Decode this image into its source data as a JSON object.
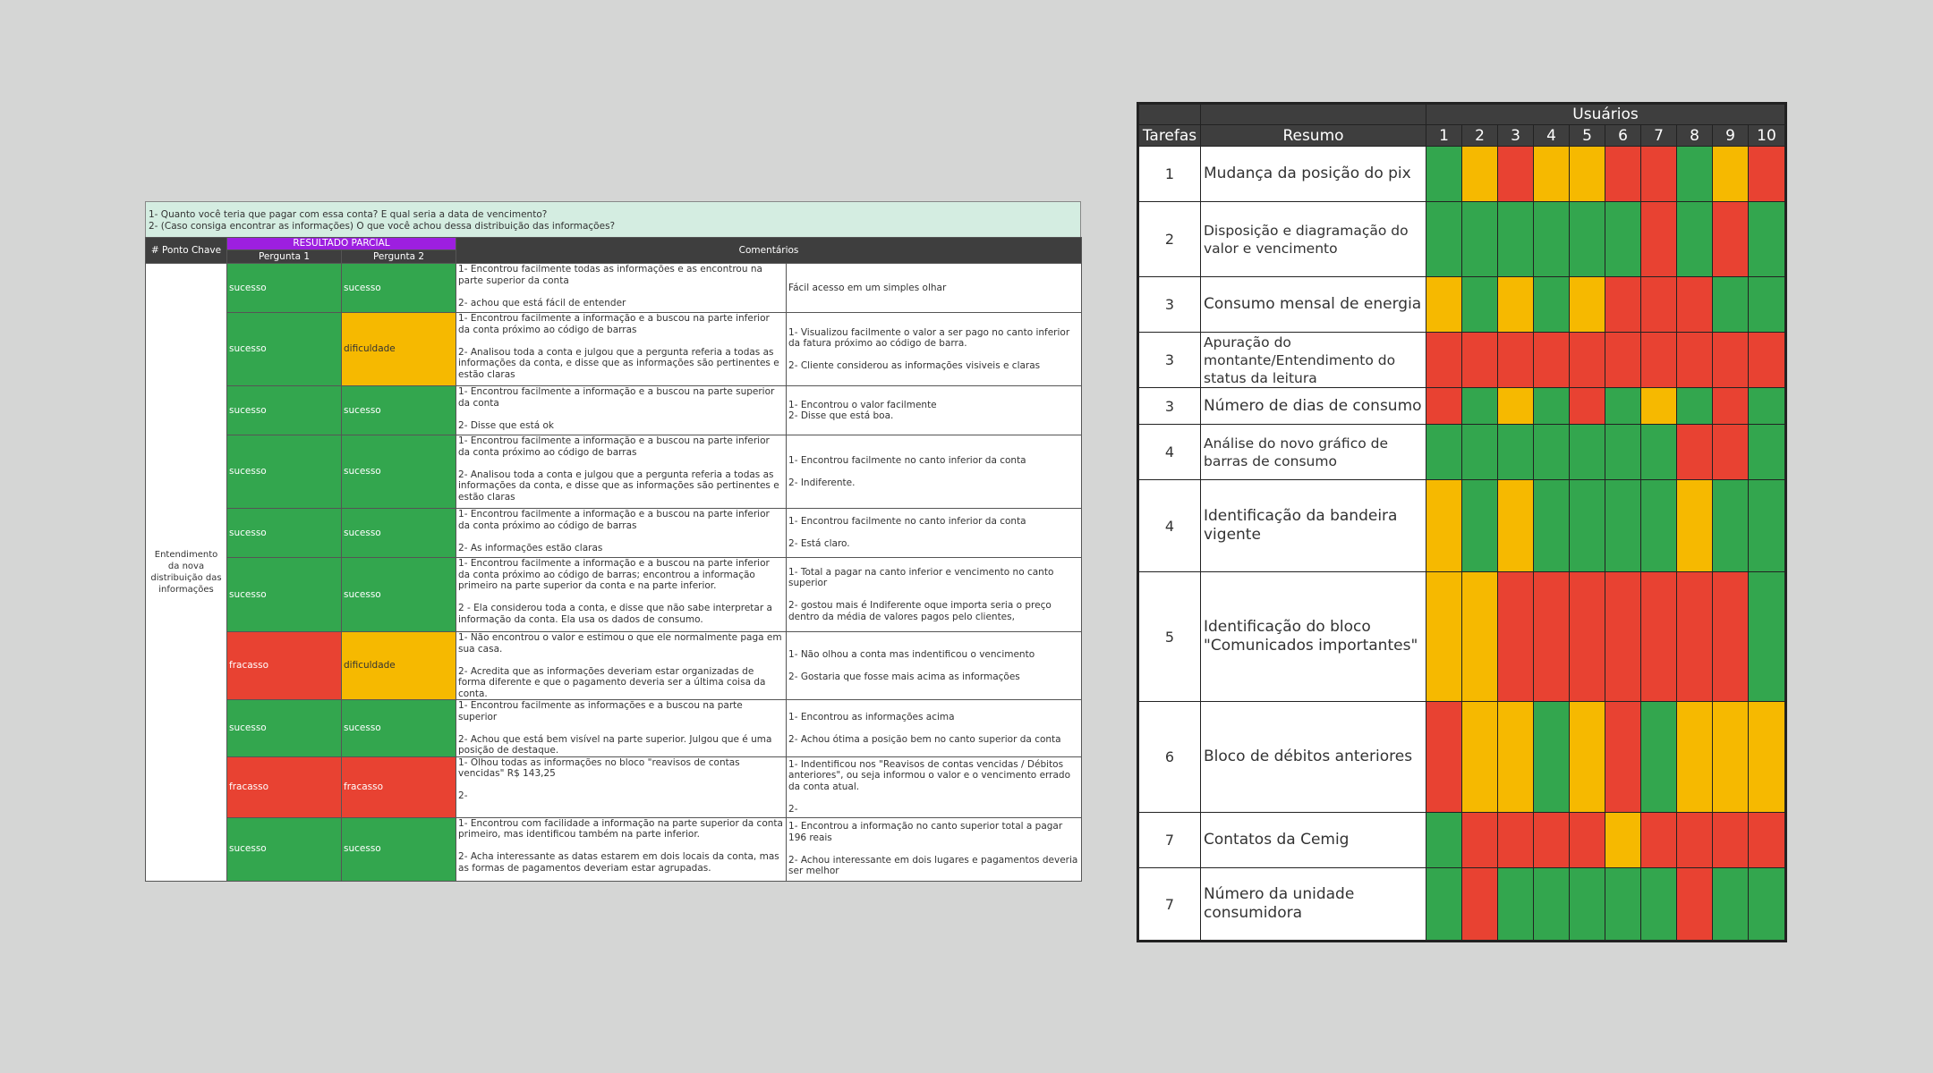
{
  "left": {
    "questions": [
      "1-  Quanto você teria que pagar com essa conta? E qual seria a data de vencimento?",
      "2-  (Caso consiga encontrar as informações) O que você achou dessa distribuição das informações?"
    ],
    "headers": {
      "ponto_chave": "# Ponto Chave",
      "resultado_parcial": "RESULTADO PARCIAL",
      "pergunta1": "Pergunta 1",
      "pergunta2": "Pergunta 2",
      "comentarios": "Comentários"
    },
    "ponto_chave_value": "Entendimento da nova distribuição das informações",
    "rows": [
      {
        "p1": "sucesso",
        "p2": "sucesso",
        "c1": "1- Encontrou facilmente todas as informações e as encontrou na parte superior da conta\n\n2- achou que está fácil de entender",
        "c2": "Fácil acesso em um simples olhar"
      },
      {
        "p1": "sucesso",
        "p2": "dificuldade",
        "c1": "1- Encontrou facilmente a informação e a buscou na parte inferior da conta próximo ao código de barras\n\n2- Analisou toda a conta e julgou que a pergunta referia a todas as informações da conta, e disse que as informações são pertinentes e estão claras",
        "c2": "1- Visualizou facilmente o valor a ser pago no canto inferior da fatura próximo ao código de barra.\n\n2- Cliente considerou as informações visiveis e claras"
      },
      {
        "p1": "sucesso",
        "p2": "sucesso",
        "c1": "1- Encontrou facilmente a informação e a buscou na parte superior da conta\n\n2- Disse que está ok",
        "c2": "1- Encontrou o valor facilmente\n2- Disse que está boa."
      },
      {
        "p1": "sucesso",
        "p2": "sucesso",
        "c1": "1- Encontrou facilmente a informação e a buscou na parte inferior da conta próximo ao código de barras\n\n2- Analisou toda a conta e julgou que a pergunta referia a todas as informações da conta, e disse que as informações são pertinentes e estão claras",
        "c2": "1- Encontrou facilmente no canto inferior da conta\n\n2- Indiferente."
      },
      {
        "p1": "sucesso",
        "p2": "sucesso",
        "c1": "1- Encontrou facilmente a informação e a buscou na parte inferior da conta próximo ao código de barras\n\n2- As informações estão claras",
        "c2": "1- Encontrou facilmente no canto inferior da conta\n\n2- Está claro."
      },
      {
        "p1": "sucesso",
        "p2": "sucesso",
        "c1": "1- Encontrou facilmente a informação e a buscou na parte inferior da conta próximo ao código de barras; encontrou a informação primeiro na parte superior da conta e na parte inferior.\n\n2 - Ela considerou toda a conta, e disse que não sabe interpretar a informação da conta. Ela usa os dados de consumo.",
        "c2": "1- Total a pagar na canto inferior e vencimento no canto superior\n\n2- gostou mais é Indiferente oque importa seria o preço dentro da média de valores pagos pelo clientes,"
      },
      {
        "p1": "fracasso",
        "p2": "dificuldade",
        "c1": "1- Não encontrou o valor e estimou o que ele normalmente paga em sua casa.\n\n2- Acredita que as informações deveriam estar organizadas de forma diferente e que o pagamento deveria ser a última coisa da conta.",
        "c2": "1- Não olhou a conta mas indentificou o vencimento\n\n2- Gostaria que fosse mais acima as informações"
      },
      {
        "p1": "sucesso",
        "p2": "sucesso",
        "c1": "1- Encontrou facilmente as informações e a buscou na parte superior\n\n2- Achou que está bem visível na parte superior. Julgou que é uma posição de destaque.",
        "c2": "1- Encontrou as informações acima\n\n2- Achou ótima a posição bem no canto superior da conta"
      },
      {
        "p1": "fracasso",
        "p2": "fracasso",
        "c1": "1- Olhou todas as informações no bloco \"reavisos de contas vencidas\" R$ 143,25\n\n2-",
        "c2": "1- Indentificou nos \"Reavisos de contas vencidas / Débitos anteriores\", ou seja informou o valor e o vencimento errado da conta atual.\n\n2-"
      },
      {
        "p1": "sucesso",
        "p2": "sucesso",
        "c1": "1- Encontrou com facilidade a informação na parte superior da conta primeiro, mas identificou também na parte inferior.\n\n2- Acha interessante as datas estarem em dois locais da conta, mas as formas de pagamentos deveriam estar agrupadas.",
        "c2": "1- Encontrou a informação no canto superior total a pagar 196 reais\n\n2- Achou interessante em dois lugares e pagamentos deveria ser melhor"
      }
    ]
  },
  "right": {
    "headers": {
      "usuarios": "Usuários",
      "tarefas": "Tarefas",
      "resumo": "Resumo",
      "users": [
        "1",
        "2",
        "3",
        "4",
        "5",
        "6",
        "7",
        "8",
        "9",
        "10"
      ]
    },
    "colors": {
      "G": "#33a64e",
      "Y": "#f6b900",
      "R": "#e84232"
    },
    "rows": [
      {
        "task": "1",
        "resumo": "Mudança da posição do pix",
        "cells": [
          "G",
          "Y",
          "R",
          "Y",
          "Y",
          "R",
          "R",
          "G",
          "Y",
          "R"
        ]
      },
      {
        "task": "2",
        "resumo": "Disposição e diagramação do valor e vencimento",
        "cells": [
          "G",
          "G",
          "G",
          "G",
          "G",
          "G",
          "R",
          "G",
          "R",
          "G"
        ]
      },
      {
        "task": "3",
        "resumo": "Consumo mensal de energia",
        "cells": [
          "Y",
          "G",
          "Y",
          "G",
          "Y",
          "R",
          "R",
          "R",
          "G",
          "G"
        ]
      },
      {
        "task": "3",
        "resumo": "Apuração do montante/Entendimento do status da leitura",
        "cells": [
          "R",
          "R",
          "R",
          "R",
          "R",
          "R",
          "R",
          "R",
          "R",
          "R"
        ]
      },
      {
        "task": "3",
        "resumo": "Número de dias de consumo",
        "cells": [
          "R",
          "G",
          "Y",
          "G",
          "R",
          "G",
          "Y",
          "G",
          "R",
          "G"
        ]
      },
      {
        "task": "4",
        "resumo": "Análise do novo gráfico de barras de consumo",
        "cells": [
          "G",
          "G",
          "G",
          "G",
          "G",
          "G",
          "G",
          "R",
          "R",
          "G"
        ]
      },
      {
        "task": "4",
        "resumo": "Identificação da bandeira vigente",
        "cells": [
          "Y",
          "G",
          "Y",
          "G",
          "G",
          "G",
          "G",
          "Y",
          "G",
          "G"
        ]
      },
      {
        "task": "5",
        "resumo": "Identificação do bloco \"Comunicados importantes\"",
        "cells": [
          "Y",
          "Y",
          "R",
          "R",
          "R",
          "R",
          "R",
          "R",
          "R",
          "G"
        ]
      },
      {
        "task": "6",
        "resumo": "Bloco de débitos anteriores",
        "cells": [
          "R",
          "Y",
          "Y",
          "G",
          "Y",
          "R",
          "G",
          "Y",
          "Y",
          "Y"
        ]
      },
      {
        "task": "7",
        "resumo": "Contatos da Cemig",
        "cells": [
          "G",
          "R",
          "R",
          "R",
          "R",
          "Y",
          "R",
          "R",
          "R",
          "R"
        ]
      },
      {
        "task": "7",
        "resumo": "Número da unidade consumidora",
        "cells": [
          "G",
          "R",
          "G",
          "G",
          "G",
          "G",
          "G",
          "R",
          "G",
          "G"
        ]
      }
    ]
  }
}
